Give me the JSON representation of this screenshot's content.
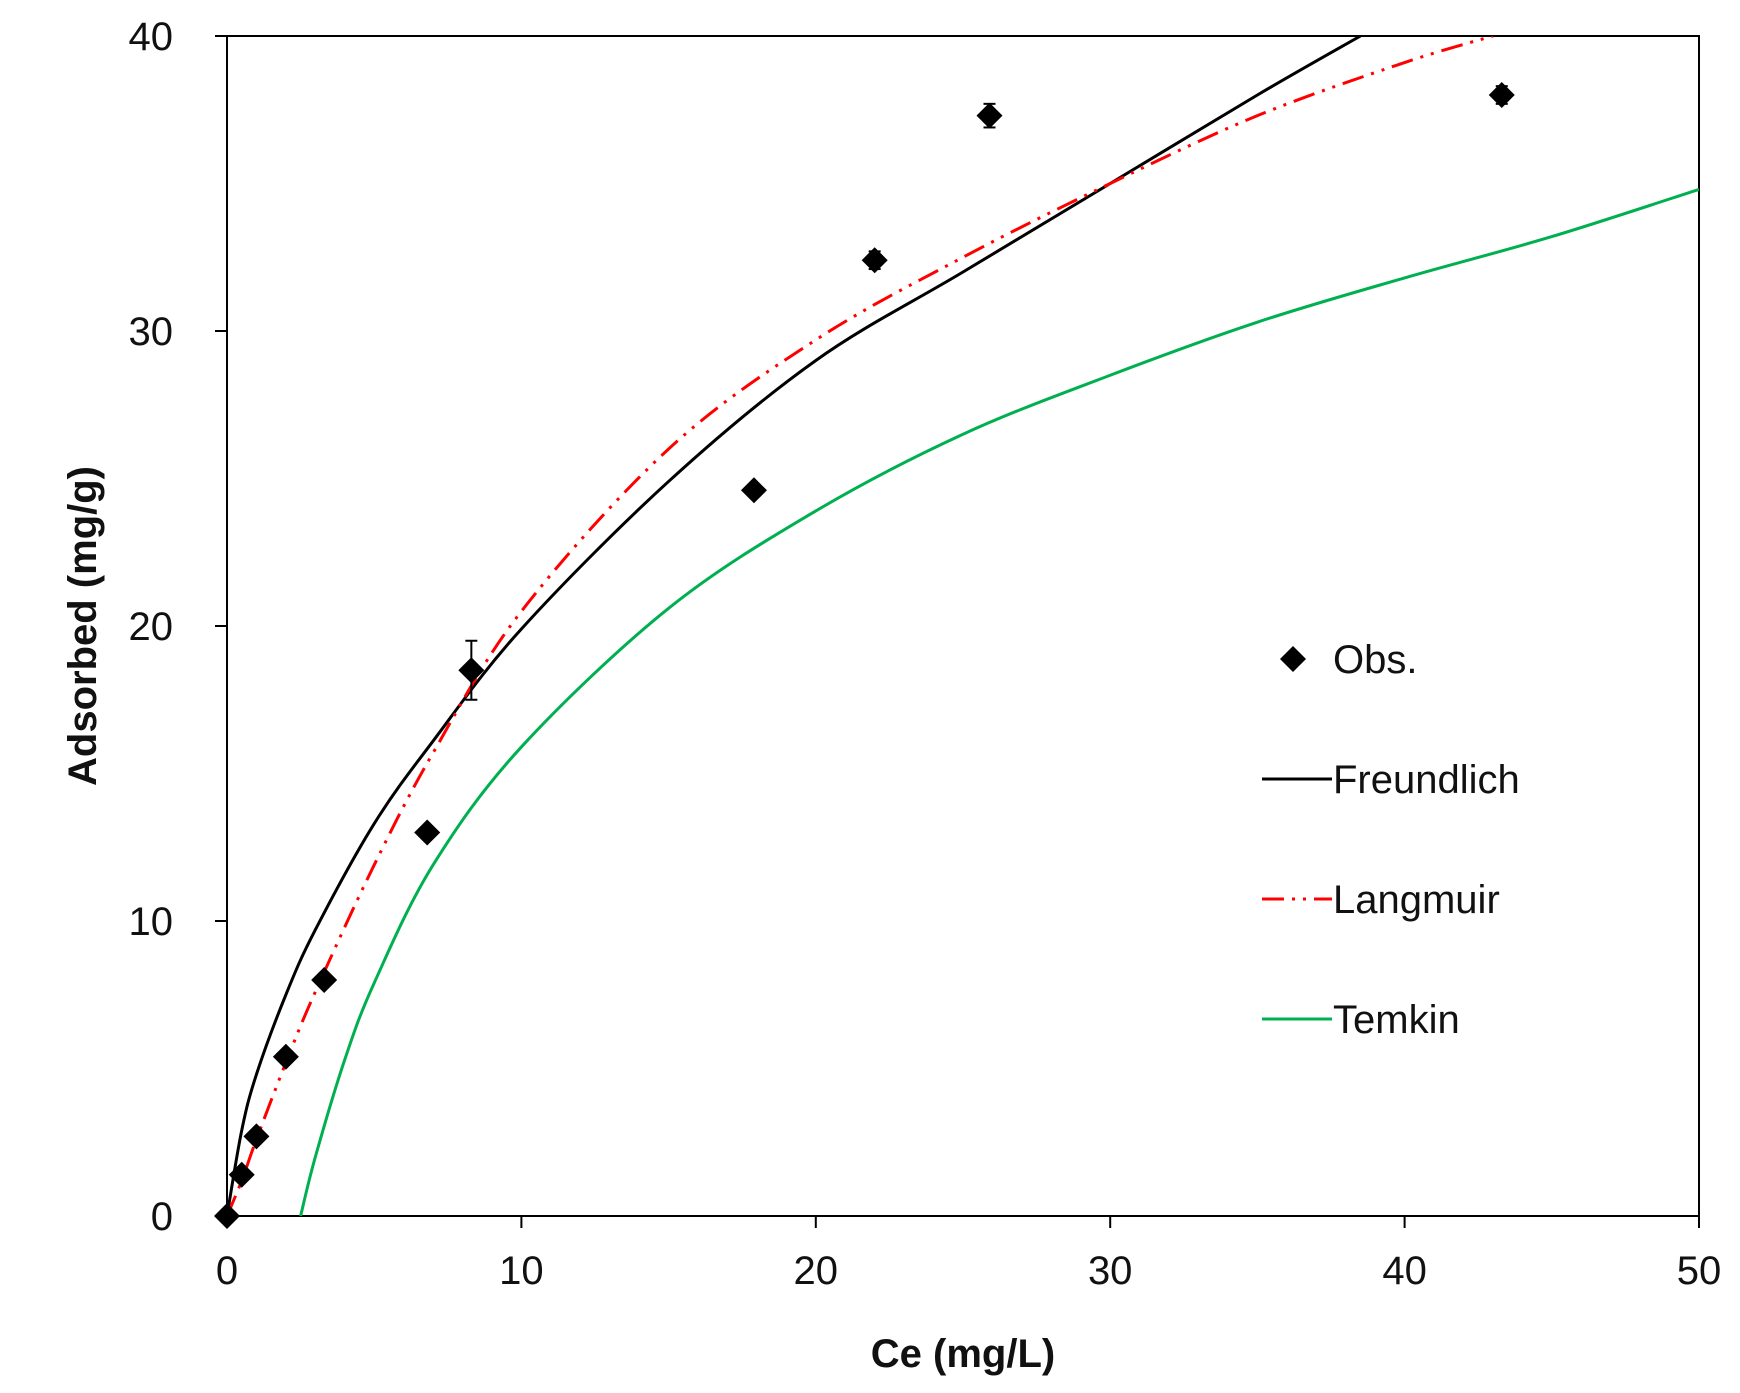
{
  "chart_data": {
    "type": "scatter",
    "title": "",
    "xlabel": "Ce (mg/L)",
    "ylabel": "Adsorbed (mg/g)",
    "xlim": [
      0,
      50
    ],
    "ylim": [
      0,
      40
    ],
    "xticks": [
      0,
      10,
      20,
      30,
      40,
      50
    ],
    "yticks": [
      0,
      10,
      20,
      30,
      40
    ],
    "xtick_labels": [
      "0",
      "10",
      "20",
      "30",
      "40",
      "50"
    ],
    "ytick_labels": [
      "0",
      "10",
      "20",
      "30",
      "40"
    ],
    "grid": false,
    "legend_position": "right",
    "series": [
      {
        "name": "Obs.",
        "kind": "scatter",
        "marker": "diamond",
        "color": "#000000",
        "points": [
          {
            "x": 0.0,
            "y": 0.0,
            "err": 0
          },
          {
            "x": 0.5,
            "y": 1.4,
            "err": 0
          },
          {
            "x": 1.0,
            "y": 2.7,
            "err": 0
          },
          {
            "x": 2.0,
            "y": 5.4,
            "err": 0
          },
          {
            "x": 3.3,
            "y": 8.0,
            "err": 0
          },
          {
            "x": 6.8,
            "y": 13.0,
            "err": 0
          },
          {
            "x": 8.3,
            "y": 18.5,
            "err": 1.0
          },
          {
            "x": 17.9,
            "y": 24.6,
            "err": 0
          },
          {
            "x": 22.0,
            "y": 32.4,
            "err": 0.3
          },
          {
            "x": 25.9,
            "y": 37.3,
            "err": 0.4
          },
          {
            "x": 43.3,
            "y": 38.0,
            "err": 0.3
          }
        ]
      },
      {
        "name": "Freundlich",
        "kind": "line",
        "color": "#000000",
        "dash": "solid",
        "x": [
          0,
          0.5,
          1,
          2,
          3,
          5,
          7,
          10,
          15,
          20,
          25,
          30,
          35,
          38.5
        ],
        "y": [
          0,
          2.9,
          4.8,
          7.5,
          9.7,
          13.3,
          16.1,
          19.9,
          24.9,
          29.0,
          32.0,
          35.0,
          38.0,
          40.0
        ]
      },
      {
        "name": "Langmuir",
        "kind": "line",
        "color": "#ff0000",
        "dash": "dash-dot-dot",
        "x": [
          0,
          0.5,
          1,
          2,
          3,
          5,
          7,
          10,
          15,
          20,
          25,
          30,
          35,
          40,
          43
        ],
        "y": [
          0,
          1.2,
          2.6,
          5.2,
          7.6,
          11.9,
          15.7,
          20.5,
          26.0,
          29.7,
          32.5,
          35.0,
          37.3,
          39.1,
          40.0
        ]
      },
      {
        "name": "Temkin",
        "kind": "line",
        "color": "#00b050",
        "dash": "solid",
        "x": [
          2.5,
          3,
          4,
          5,
          7,
          10,
          15,
          20,
          25,
          30,
          35,
          40,
          45,
          50
        ],
        "y": [
          0,
          2.0,
          5.3,
          7.9,
          11.9,
          15.9,
          20.6,
          23.9,
          26.5,
          28.5,
          30.3,
          31.8,
          33.2,
          34.8
        ]
      }
    ]
  }
}
